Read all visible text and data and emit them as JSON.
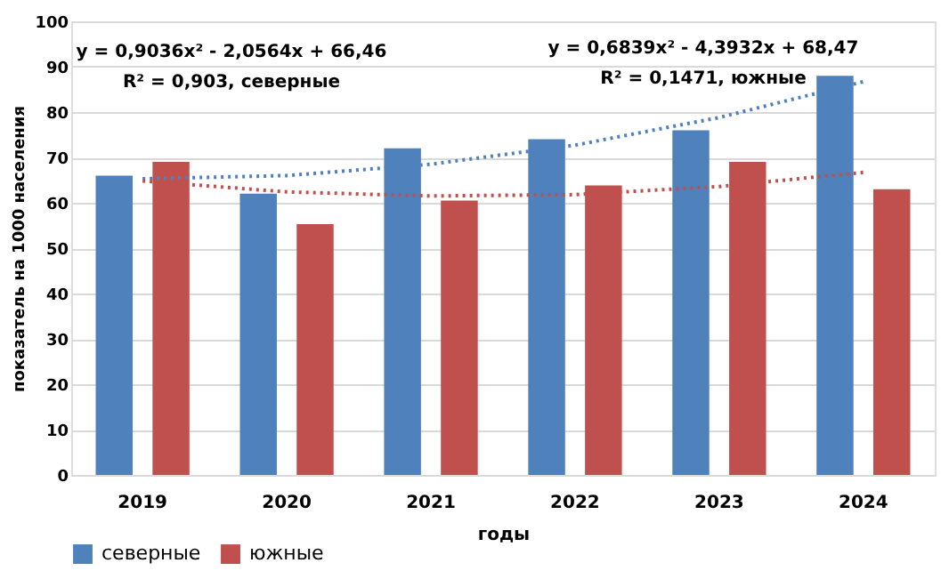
{
  "chart_data": {
    "type": "bar",
    "xlabel": "годы",
    "ylabel": "показатель на  1000 населения",
    "categories": [
      "2019",
      "2020",
      "2021",
      "2022",
      "2023",
      "2024"
    ],
    "series": [
      {
        "name": "северные",
        "color": "#4f81bd",
        "values": [
          66,
          62,
          72,
          74,
          76,
          88
        ]
      },
      {
        "name": "южные",
        "color": "#c0504d",
        "values": [
          69,
          55.3,
          60.5,
          63.8,
          69,
          63
        ]
      },
      {
        "type": "line",
        "line_style": "dotted",
        "color": "#4f81bd",
        "values": [
          65.3,
          66.0,
          68.5,
          72.7,
          78.8,
          86.7
        ]
      },
      {
        "type": "line",
        "line_style": "dotted",
        "color": "#c0504d",
        "values": [
          64.8,
          62.4,
          61.5,
          61.8,
          63.6,
          66.7
        ]
      }
    ],
    "ylim": [
      0,
      100
    ],
    "yticks": [
      0,
      10,
      20,
      30,
      40,
      50,
      60,
      70,
      80,
      90,
      100
    ],
    "grid": "y",
    "legend": "bottom",
    "annotations": [
      "y = 0,9036x² - 2,0564x + 66,46\nR² = 0,903, северные",
      "y = 0,6839x² - 4,3932x + 68,47\nR² = 0,1471, южные"
    ]
  }
}
